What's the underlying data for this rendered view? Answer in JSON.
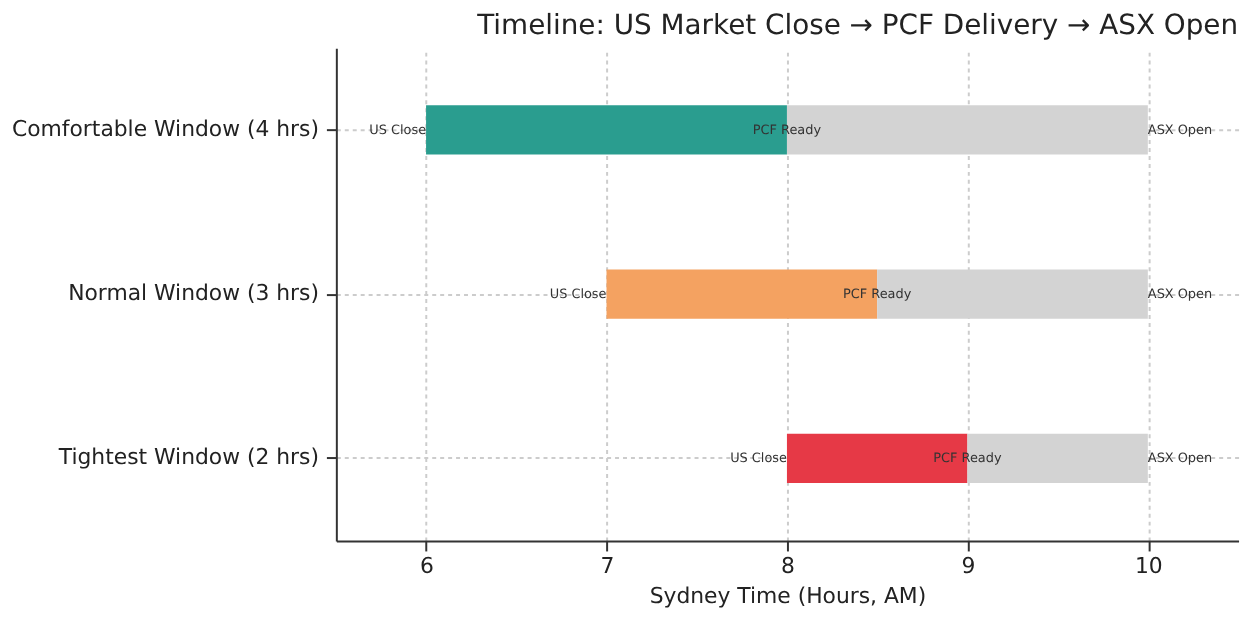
{
  "chart_data": {
    "type": "bar",
    "orientation": "horizontal",
    "title": "Timeline: US Market Close → PCF Delivery → ASX Open",
    "xlabel": "Sydney Time (Hours, AM)",
    "categories": [
      "Comfortable Window (4 hrs)",
      "Normal Window (3 hrs)",
      "Tightest Window (2 hrs)"
    ],
    "series": [
      {
        "colors": [
          "#2a9d8f",
          "#f4a261",
          "#e63946"
        ],
        "base": [
          6,
          7,
          8
        ],
        "values": [
          2,
          1.5,
          1
        ]
      },
      {
        "color": "#d3d3d3",
        "base": [
          8,
          8.5,
          9
        ],
        "values": [
          2,
          1.5,
          1
        ]
      }
    ],
    "xlim": [
      5.5,
      10.5
    ],
    "xticks": [
      6,
      7,
      8,
      9,
      10
    ],
    "grid": true,
    "annotations": [
      "US Close",
      "PCF Ready",
      "ASX Open",
      "US Close",
      "PCF Ready",
      "ASX Open",
      "US Close",
      "PCF Ready",
      "ASX Open"
    ]
  }
}
